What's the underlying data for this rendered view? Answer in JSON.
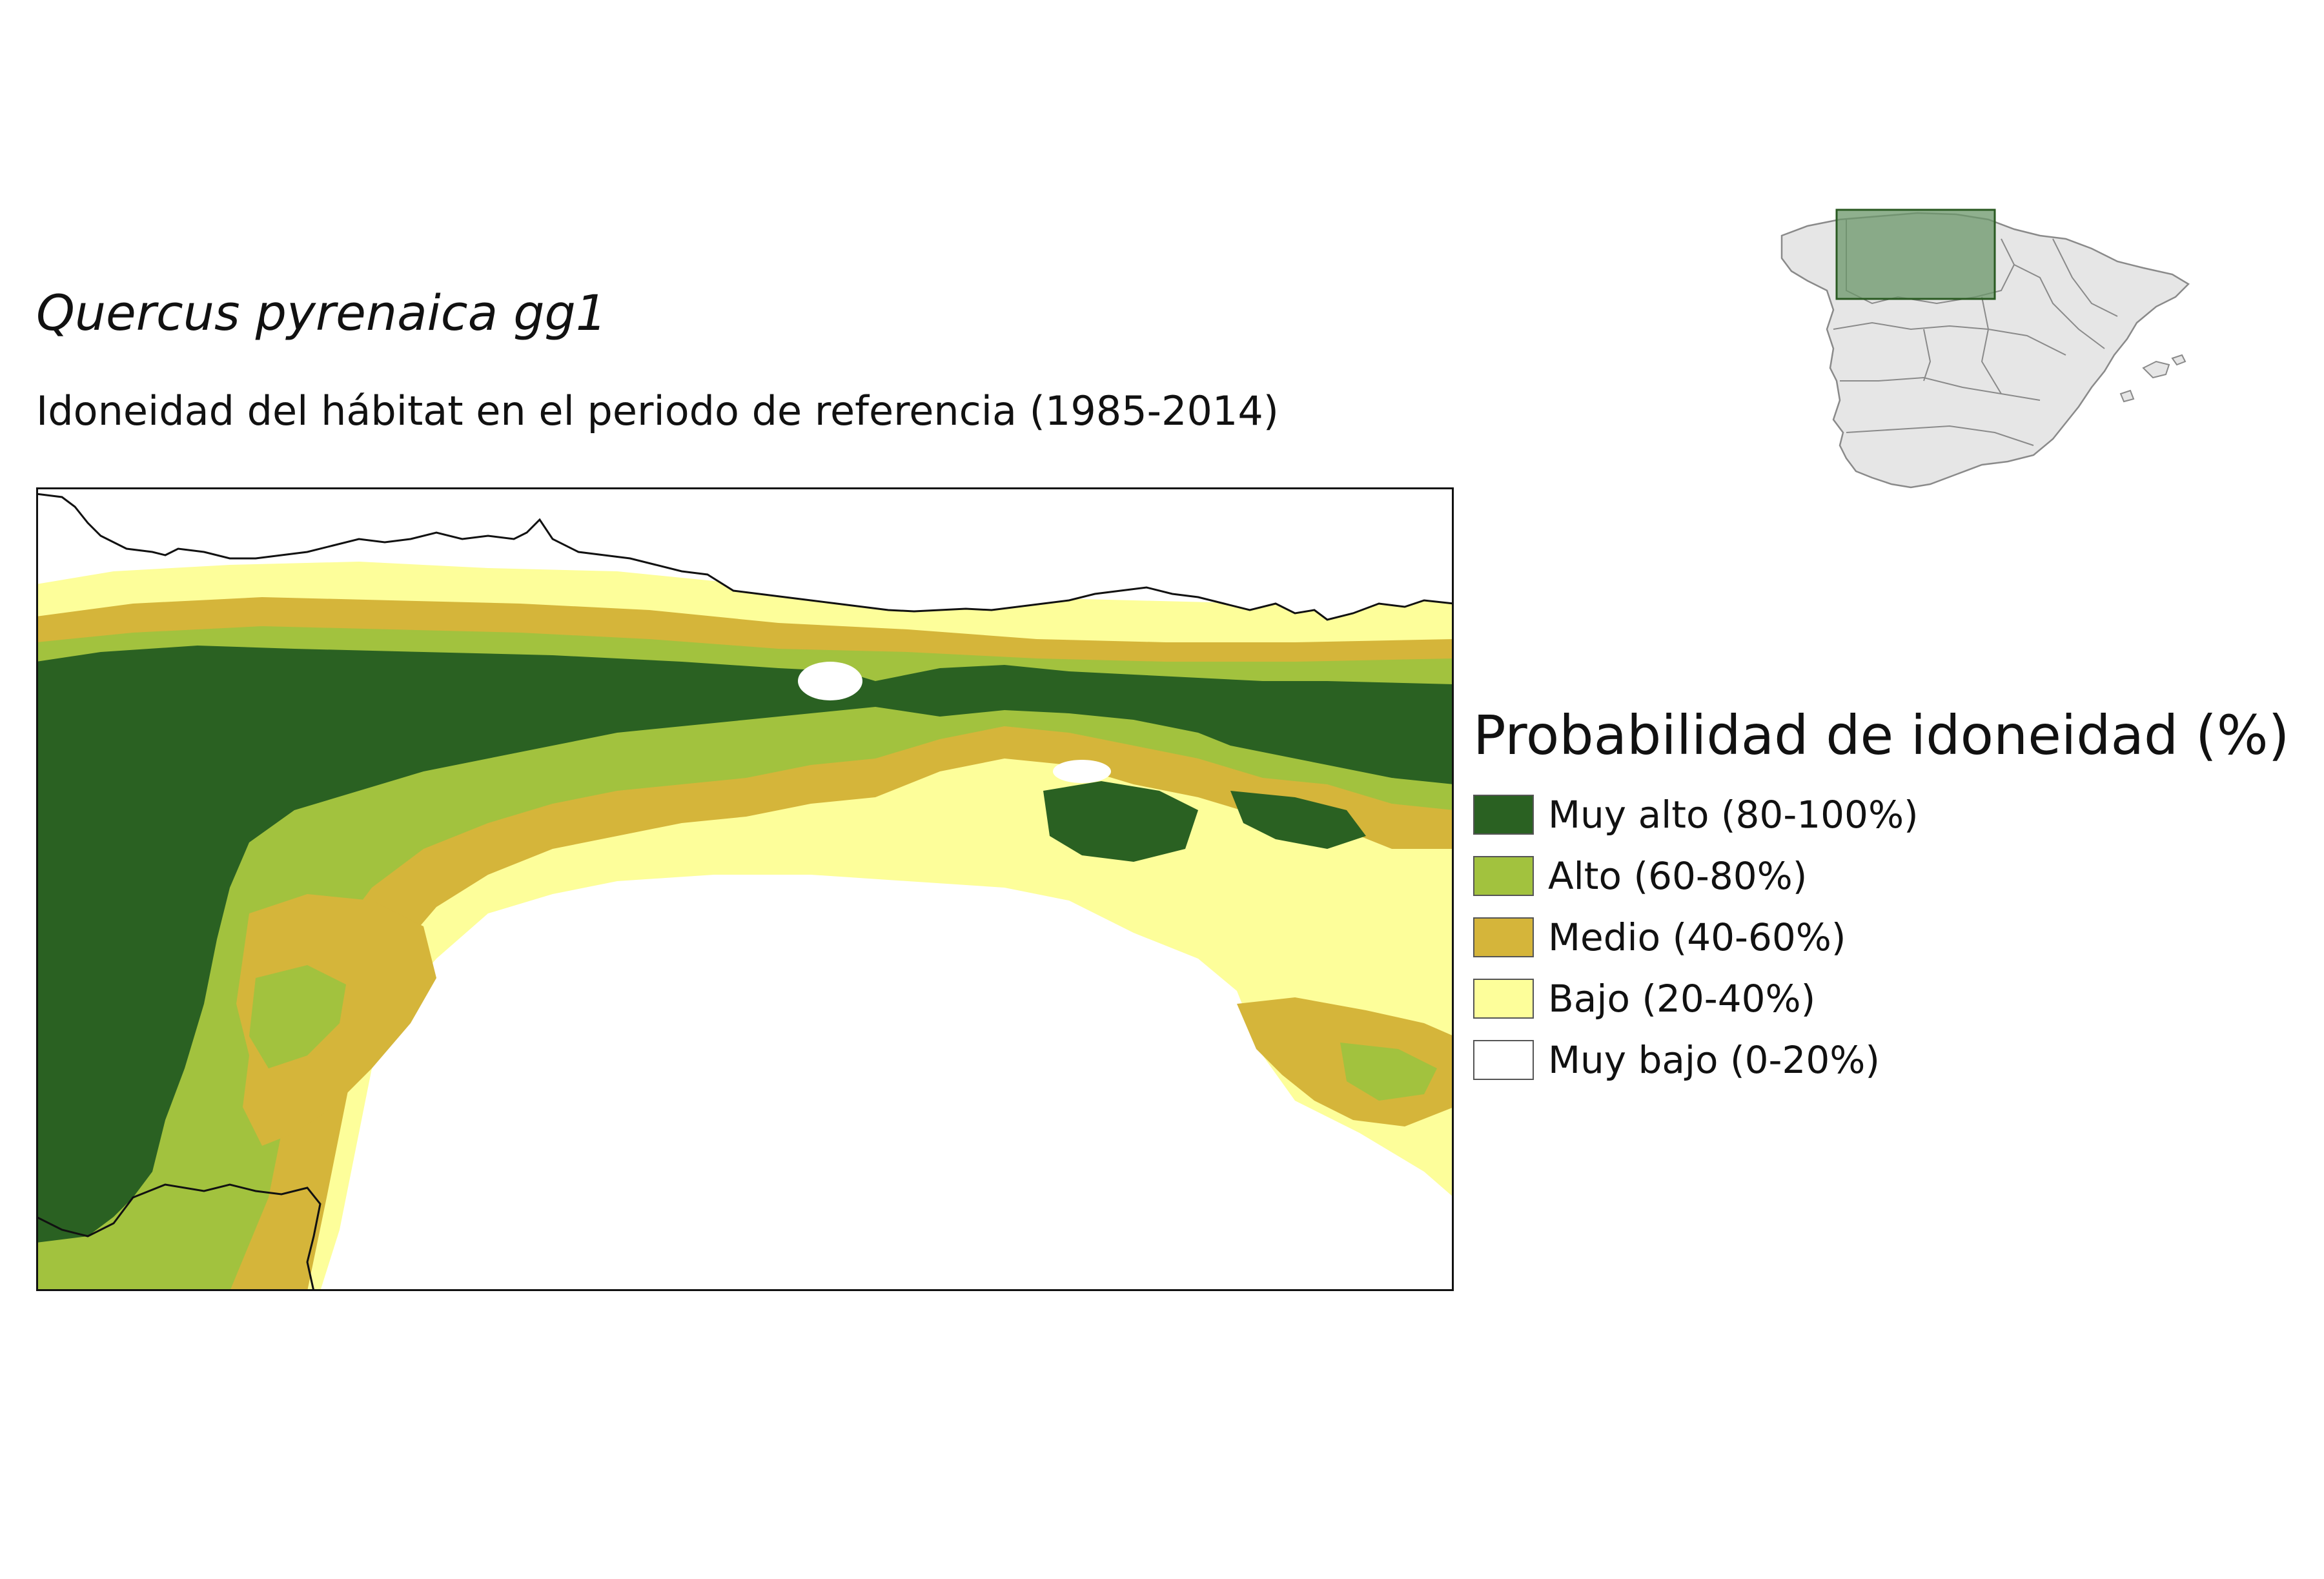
{
  "title": "Quercus pyrenaica gg1",
  "subtitle": "Idoneidad del hábitat en el periodo de referencia (1985-2014)",
  "legend": {
    "title": "Probabilidad de idoneidad (%)",
    "items": [
      {
        "label": "Muy alto (80-100%)",
        "color": "#2a6122"
      },
      {
        "label": "Alto (60-80%)",
        "color": "#a2c23e"
      },
      {
        "label": "Medio (40-60%)",
        "color": "#d5b53a"
      },
      {
        "label": "Bajo (20-40%)",
        "color": "#fdfe9a"
      },
      {
        "label": "Muy bajo (0-20%)",
        "color": "#ffffff"
      }
    ]
  },
  "locator": {
    "land_color": "#e6e6e6",
    "border_color": "#8a8a8a",
    "highlight_color": "#6a9668"
  }
}
